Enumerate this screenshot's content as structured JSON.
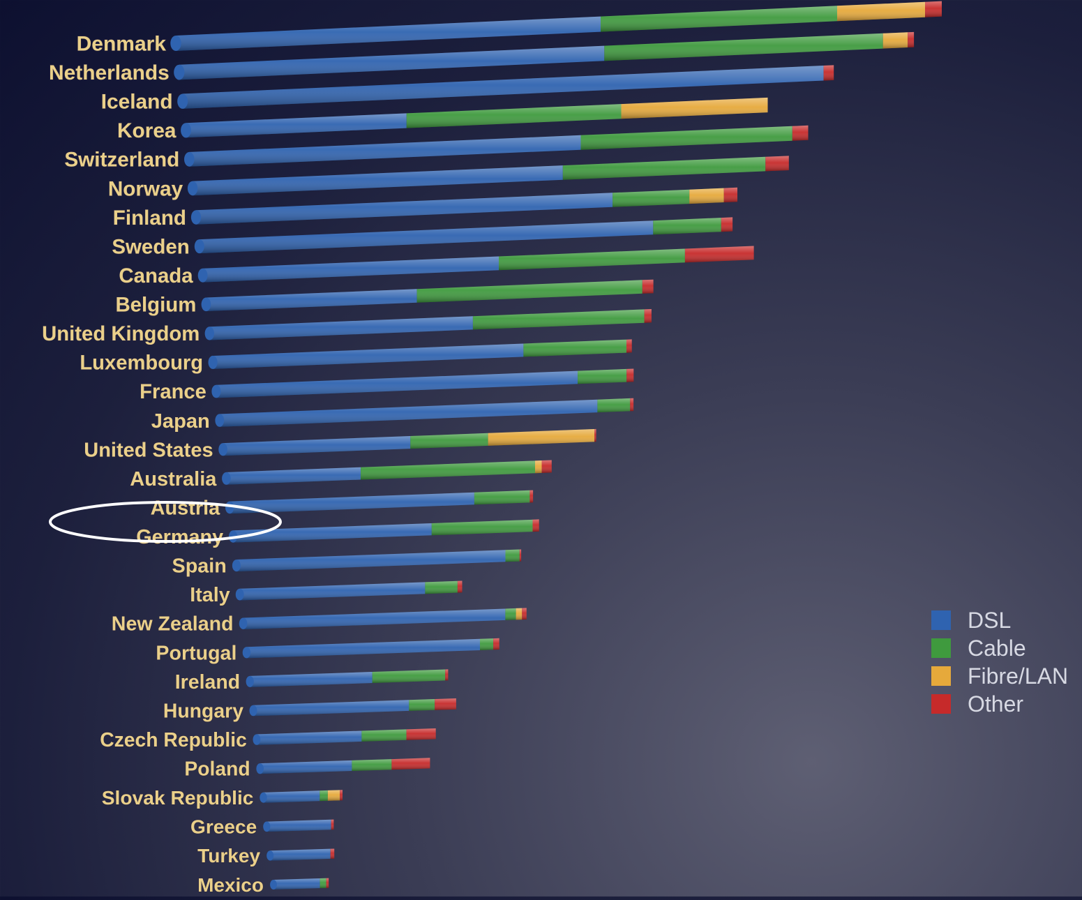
{
  "chart_data": {
    "type": "bar",
    "stacked": true,
    "orientation": "horizontal",
    "perspective_3d": true,
    "title": "",
    "xlabel": "",
    "ylabel": "",
    "categories": [
      "Denmark",
      "Netherlands",
      "Iceland",
      "Korea",
      "Switzerland",
      "Norway",
      "Finland",
      "Sweden",
      "Canada",
      "Belgium",
      "United Kingdom",
      "Luxembourg",
      "France",
      "Japan",
      "United States",
      "Australia",
      "Austria",
      "Germany",
      "Spain",
      "Italy",
      "New Zealand",
      "Portugal",
      "Ireland",
      "Hungary",
      "Czech Republic",
      "Poland",
      "Slovak Republic",
      "Greece",
      "Turkey",
      "Mexico"
    ],
    "series": [
      {
        "name": "DSL",
        "color": "#2f63b0",
        "values": [
          20.3,
          20.6,
          31.5,
          11.0,
          19.8,
          19.0,
          21.7,
          24.0,
          15.9,
          11.5,
          14.6,
          17.5,
          20.7,
          22.0,
          11.1,
          8.1,
          15.0,
          12.4,
          17.1,
          12.0,
          17.3,
          15.7,
          8.4,
          10.9,
          7.5,
          6.7,
          4.2,
          4.9,
          4.7,
          3.7
        ]
      },
      {
        "name": "Cable",
        "color": "#3f9a3e",
        "values": [
          11.3,
          13.5,
          0.0,
          10.7,
          10.7,
          10.4,
          4.0,
          3.6,
          10.0,
          12.3,
          9.5,
          5.8,
          2.8,
          1.9,
          4.6,
          10.5,
          3.4,
          6.3,
          0.9,
          2.1,
          0.7,
          0.9,
          5.0,
          1.8,
          3.2,
          2.9,
          0.6,
          0.0,
          0.0,
          0.5
        ]
      },
      {
        "name": "Fibre/LAN",
        "color": "#e6a93b",
        "values": [
          4.2,
          1.2,
          0.0,
          7.3,
          0.0,
          0.0,
          1.8,
          0.0,
          0.0,
          0.0,
          0.0,
          0.0,
          0.0,
          0.0,
          6.3,
          0.4,
          0.0,
          0.0,
          0.0,
          0.0,
          0.4,
          0.0,
          0.0,
          0.0,
          0.0,
          0.0,
          0.9,
          0.0,
          0.0,
          0.0
        ]
      },
      {
        "name": "Other",
        "color": "#c62a2a",
        "values": [
          0.8,
          0.3,
          0.5,
          0.0,
          0.8,
          1.2,
          0.7,
          0.6,
          3.7,
          0.6,
          0.4,
          0.3,
          0.4,
          0.2,
          0.1,
          0.6,
          0.2,
          0.4,
          0.1,
          0.3,
          0.3,
          0.4,
          0.2,
          1.5,
          2.1,
          2.8,
          0.2,
          0.2,
          0.3,
          0.2
        ]
      }
    ],
    "legend": {
      "position": "right",
      "entries": [
        "DSL",
        "Cable",
        "Fibre/LAN",
        "Other"
      ]
    },
    "highlighted_category": "Australia",
    "grid": false
  }
}
